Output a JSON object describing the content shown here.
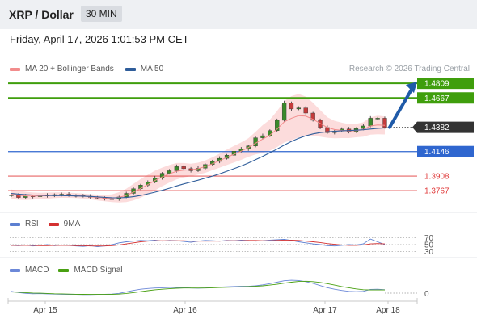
{
  "header": {
    "title": "XRP / Dollar",
    "timeframe": "30 MIN"
  },
  "datetime": "Friday, April 17, 2026 1:01:53 PM CET",
  "credit": "Research © 2026 Trading Central",
  "colors": {
    "green": "#3f9e0c",
    "blue": "#2f66cf",
    "red": "#e03a3a",
    "dark": "#333333",
    "bollinger": "#fbd6d6",
    "ma20": "#f28c8c",
    "ma50": "#2f5d9a",
    "rsi": "#5c7fd1",
    "rsi_ma": "#d43030",
    "macd": "#6c88d8",
    "macd_signal": "#49a012",
    "arrow": "#1f5aa8"
  },
  "price_legend": {
    "ma20": "MA 20 + Bollinger Bands",
    "ma50": "MA 50"
  },
  "rsi_legend": {
    "rsi": "RSI",
    "ma": "9MA"
  },
  "macd_legend": {
    "macd": "MACD",
    "signal": "MACD Signal"
  },
  "chart_data": [
    {
      "type": "candlestick",
      "title": "XRP / Dollar",
      "timeframe": "30 MIN",
      "x_ticks": [
        "Apr 15",
        "Apr 16",
        "Apr 17",
        "Apr 18"
      ],
      "ylim": [
        1.3595,
        1.4865
      ],
      "last_price": 1.4382,
      "levels": [
        {
          "value": 1.4809,
          "label": "1.4809",
          "color": "green",
          "style": "box"
        },
        {
          "value": 1.4667,
          "label": "1.4667",
          "color": "green",
          "style": "box"
        },
        {
          "value": 1.4146,
          "label": "1.4146",
          "color": "blue",
          "style": "box"
        },
        {
          "value": 1.3908,
          "label": "1.3908",
          "color": "red",
          "style": "text"
        },
        {
          "value": 1.3767,
          "label": "1.3767",
          "color": "red",
          "style": "text"
        }
      ],
      "close_path": [
        1.3725,
        1.37,
        1.3715,
        1.3708,
        1.3722,
        1.3716,
        1.3728,
        1.3732,
        1.372,
        1.3718,
        1.3712,
        1.3702,
        1.3695,
        1.3688,
        1.3685,
        1.3705,
        1.374,
        1.3785,
        1.382,
        1.385,
        1.389,
        1.3935,
        1.396,
        1.4,
        1.398,
        1.396,
        1.3985,
        1.402,
        1.405,
        1.408,
        1.411,
        1.415,
        1.417,
        1.42,
        1.428,
        1.43,
        1.435,
        1.445,
        1.462,
        1.456,
        1.457,
        1.452,
        1.445,
        1.438,
        1.433,
        1.4345,
        1.4365,
        1.434,
        1.437,
        1.4395,
        1.447,
        1.447,
        1.438
      ],
      "ma20": [
        1.3732,
        1.3722,
        1.3716,
        1.3714,
        1.3716,
        1.3718,
        1.3722,
        1.3724,
        1.3722,
        1.3719,
        1.3714,
        1.3707,
        1.37,
        1.3695,
        1.3693,
        1.3702,
        1.372,
        1.3752,
        1.3788,
        1.3825,
        1.3865,
        1.39,
        1.393,
        1.3955,
        1.3965,
        1.3968,
        1.398,
        1.4,
        1.4028,
        1.4058,
        1.409,
        1.412,
        1.415,
        1.4185,
        1.4228,
        1.4268,
        1.4305,
        1.4365,
        1.4435,
        1.447,
        1.4495,
        1.449,
        1.446,
        1.442,
        1.438,
        1.436,
        1.4352,
        1.4345,
        1.435,
        1.436,
        1.4395,
        1.4405,
        1.44
      ],
      "bollinger_width": [
        0.0045,
        0.0045,
        0.004,
        0.0035,
        0.003,
        0.003,
        0.0028,
        0.0026,
        0.0025,
        0.0024,
        0.0024,
        0.0025,
        0.0028,
        0.0032,
        0.0038,
        0.005,
        0.0065,
        0.008,
        0.009,
        0.0095,
        0.0095,
        0.009,
        0.0085,
        0.008,
        0.007,
        0.006,
        0.0058,
        0.006,
        0.0062,
        0.0068,
        0.0075,
        0.008,
        0.0085,
        0.009,
        0.011,
        0.0135,
        0.015,
        0.0175,
        0.02,
        0.0215,
        0.021,
        0.019,
        0.016,
        0.013,
        0.01,
        0.0085,
        0.0075,
        0.0068,
        0.0065,
        0.007,
        0.0085,
        0.009,
        0.0088
      ],
      "ma50": [
        1.374,
        1.3733,
        1.3728,
        1.3724,
        1.3722,
        1.372,
        1.3719,
        1.3718,
        1.3717,
        1.3715,
        1.3713,
        1.371,
        1.3706,
        1.3702,
        1.3698,
        1.3697,
        1.37,
        1.3708,
        1.372,
        1.3735,
        1.3752,
        1.377,
        1.379,
        1.3812,
        1.3832,
        1.385,
        1.3868,
        1.3888,
        1.3908,
        1.393,
        1.3955,
        1.398,
        1.4006,
        1.4035,
        1.4068,
        1.41,
        1.4135,
        1.417,
        1.421,
        1.4245,
        1.4275,
        1.43,
        1.4318,
        1.433,
        1.4338,
        1.4343,
        1.4348,
        1.435,
        1.4354,
        1.4358,
        1.4365,
        1.4372,
        1.4376
      ],
      "projection": {
        "from": 1.4382,
        "to": 1.4809
      }
    },
    {
      "type": "line",
      "title": "RSI",
      "levels": [
        70,
        50,
        30
      ],
      "ylim": [
        20,
        80
      ],
      "series": [
        {
          "name": "RSI",
          "values": [
            48,
            47,
            49,
            46,
            48,
            50,
            47,
            49,
            48,
            46,
            45,
            47,
            44,
            46,
            50,
            55,
            58,
            60,
            62,
            61,
            63,
            60,
            62,
            61,
            59,
            57,
            60,
            62,
            61,
            60,
            62,
            61,
            63,
            62,
            60,
            61,
            63,
            64,
            65,
            62,
            58,
            55,
            52,
            50,
            47,
            46,
            48,
            50,
            49,
            52,
            66,
            58,
            50
          ]
        },
        {
          "name": "9MA",
          "values": [
            48,
            48,
            48,
            48,
            47,
            47,
            48,
            48,
            48,
            47,
            47,
            46,
            46,
            46,
            47,
            49,
            52,
            55,
            58,
            60,
            61,
            61,
            61,
            61,
            61,
            60,
            60,
            60,
            60,
            60,
            61,
            61,
            61,
            62,
            62,
            61,
            61,
            62,
            63,
            63,
            62,
            60,
            58,
            56,
            53,
            51,
            49,
            48,
            48,
            49,
            52,
            53,
            52
          ]
        }
      ]
    },
    {
      "type": "line",
      "title": "MACD",
      "zero_label": "0",
      "ylim": [
        -0.006,
        0.012
      ],
      "series": [
        {
          "name": "MACD",
          "values": [
            0.0015,
            0.0005,
            -0.0002,
            -0.0005,
            -0.0004,
            -0.0006,
            -0.0008,
            -0.0009,
            -0.001,
            -0.0011,
            -0.0012,
            -0.0012,
            -0.0011,
            -0.001,
            -0.0008,
            -0.0002,
            0.001,
            0.0022,
            0.0032,
            0.0038,
            0.0042,
            0.0044,
            0.0046,
            0.0047,
            0.0046,
            0.0042,
            0.0041,
            0.0043,
            0.0046,
            0.0049,
            0.0052,
            0.0055,
            0.0056,
            0.0056,
            0.006,
            0.0068,
            0.0078,
            0.009,
            0.0102,
            0.0106,
            0.0104,
            0.0095,
            0.008,
            0.0062,
            0.0045,
            0.0032,
            0.0022,
            0.0015,
            0.0012,
            0.0015,
            0.003,
            0.0032,
            0.0028
          ]
        },
        {
          "name": "MACD Signal",
          "values": [
            0.001,
            0.0007,
            0.0004,
            0.0001,
            -0.0001,
            -0.0003,
            -0.0005,
            -0.0006,
            -0.0008,
            -0.0009,
            -0.001,
            -0.0011,
            -0.0011,
            -0.0011,
            -0.001,
            -0.0008,
            -0.0003,
            0.0004,
            0.0012,
            0.002,
            0.0027,
            0.0032,
            0.0036,
            0.004,
            0.0042,
            0.0042,
            0.0042,
            0.0042,
            0.0044,
            0.0046,
            0.0048,
            0.005,
            0.0052,
            0.0054,
            0.0056,
            0.006,
            0.0066,
            0.0073,
            0.0082,
            0.009,
            0.0096,
            0.0098,
            0.0095,
            0.0088,
            0.0078,
            0.0066,
            0.0054,
            0.0044,
            0.0035,
            0.0028,
            0.0026,
            0.0026,
            0.0026
          ]
        }
      ]
    }
  ]
}
